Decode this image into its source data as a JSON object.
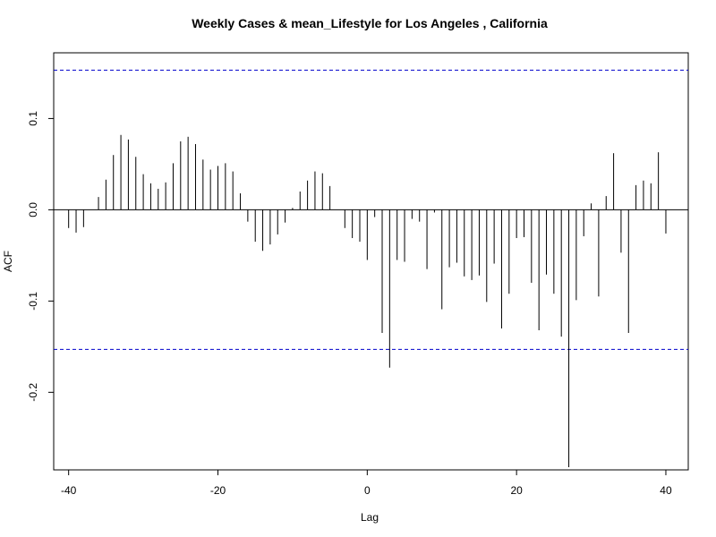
{
  "chart_data": {
    "type": "bar",
    "title": "Weekly Cases & mean_Lifestyle for Los Angeles , California",
    "xlabel": "Lag",
    "ylabel": "ACF",
    "xlim": [
      -42,
      43
    ],
    "ylim": [
      -0.285,
      0.172
    ],
    "xticks": [
      -40,
      -20,
      0,
      20,
      40
    ],
    "yticks": [
      -0.2,
      -0.1,
      0.0,
      0.1
    ],
    "ytick_labels": [
      "-0.2",
      "-0.1",
      "0.0",
      "0.1"
    ],
    "confidence_band": 0.153,
    "grid": false,
    "lags": [
      -40,
      -39,
      -38,
      -37,
      -36,
      -35,
      -34,
      -33,
      -32,
      -31,
      -30,
      -29,
      -28,
      -27,
      -26,
      -25,
      -24,
      -23,
      -22,
      -21,
      -20,
      -19,
      -18,
      -17,
      -16,
      -15,
      -14,
      -13,
      -12,
      -11,
      -10,
      -9,
      -8,
      -7,
      -6,
      -5,
      -4,
      -3,
      -2,
      -1,
      0,
      1,
      2,
      3,
      4,
      5,
      6,
      7,
      8,
      9,
      10,
      11,
      12,
      13,
      14,
      15,
      16,
      17,
      18,
      19,
      20,
      21,
      22,
      23,
      24,
      25,
      26,
      27,
      28,
      29,
      30,
      31,
      32,
      33,
      34,
      35,
      36,
      37,
      38,
      39,
      40
    ],
    "values": [
      -0.02,
      -0.025,
      -0.019,
      0.0,
      0.014,
      0.033,
      0.06,
      0.082,
      0.077,
      0.058,
      0.039,
      0.029,
      0.023,
      0.03,
      0.051,
      0.075,
      0.08,
      0.072,
      0.055,
      0.044,
      0.048,
      0.051,
      0.042,
      0.018,
      -0.013,
      -0.035,
      -0.045,
      -0.038,
      -0.027,
      -0.014,
      0.002,
      0.02,
      0.032,
      0.042,
      0.04,
      0.026,
      0.0,
      -0.02,
      -0.031,
      -0.035,
      -0.055,
      -0.008,
      -0.135,
      -0.173,
      -0.055,
      -0.057,
      -0.01,
      -0.013,
      -0.065,
      -0.003,
      -0.109,
      -0.063,
      -0.058,
      -0.073,
      -0.077,
      -0.072,
      -0.101,
      -0.059,
      -0.13,
      -0.092,
      -0.031,
      -0.03,
      -0.08,
      -0.132,
      -0.071,
      -0.092,
      -0.139,
      -0.282,
      -0.099,
      -0.029,
      0.007,
      -0.095,
      0.015,
      0.062,
      -0.047,
      -0.135,
      0.027,
      0.032,
      0.029,
      0.063,
      -0.026
    ],
    "colors": {
      "bars": "#000000",
      "band": "#0000cc",
      "axis": "#000000"
    }
  }
}
